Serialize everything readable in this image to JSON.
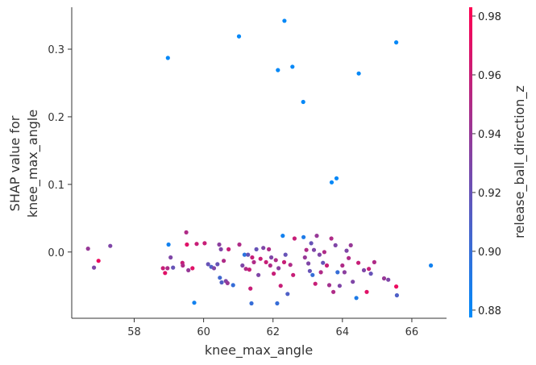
{
  "chart_data": {
    "type": "scatter",
    "xlabel": "knee_max_angle",
    "ylabel_lines": [
      "SHAP value for",
      "knee_max_angle"
    ],
    "colorbar_label": "release_ball_direction_z",
    "xlim": [
      56.2,
      67.0
    ],
    "ylim": [
      -0.098,
      0.362
    ],
    "xticks": [
      58,
      60,
      62,
      64,
      66
    ],
    "yticks": [
      0.0,
      0.1,
      0.2,
      0.3
    ],
    "ytick_labels": [
      "0.0",
      "0.1",
      "0.2",
      "0.3"
    ],
    "clim": [
      0.8775,
      0.983
    ],
    "cticks": [
      0.88,
      0.9,
      0.92,
      0.94,
      0.96,
      0.98
    ],
    "ctick_labels": [
      "0.88",
      "0.90",
      "0.92",
      "0.94",
      "0.96",
      "0.98"
    ],
    "colormap": [
      "#008bfb",
      "#ff0052"
    ],
    "points": [
      {
        "x": 58.97,
        "y": 0.287,
        "c": 0.88
      },
      {
        "x": 61.02,
        "y": 0.319,
        "c": 0.88
      },
      {
        "x": 62.33,
        "y": 0.342,
        "c": 0.88
      },
      {
        "x": 62.56,
        "y": 0.274,
        "c": 0.88
      },
      {
        "x": 62.14,
        "y": 0.269,
        "c": 0.88
      },
      {
        "x": 65.55,
        "y": 0.31,
        "c": 0.88
      },
      {
        "x": 64.47,
        "y": 0.264,
        "c": 0.88
      },
      {
        "x": 62.87,
        "y": 0.222,
        "c": 0.88
      },
      {
        "x": 63.83,
        "y": 0.109,
        "c": 0.88
      },
      {
        "x": 63.69,
        "y": 0.103,
        "c": 0.88
      },
      {
        "x": 56.67,
        "y": 0.005,
        "c": 0.94
      },
      {
        "x": 56.84,
        "y": -0.023,
        "c": 0.93
      },
      {
        "x": 56.97,
        "y": -0.013,
        "c": 0.975
      },
      {
        "x": 57.31,
        "y": 0.009,
        "c": 0.93
      },
      {
        "x": 58.83,
        "y": -0.024,
        "c": 0.96
      },
      {
        "x": 58.89,
        "y": -0.031,
        "c": 0.97
      },
      {
        "x": 58.96,
        "y": -0.024,
        "c": 0.95
      },
      {
        "x": 58.99,
        "y": 0.011,
        "c": 0.885
      },
      {
        "x": 59.05,
        "y": -0.008,
        "c": 0.93
      },
      {
        "x": 59.12,
        "y": -0.023,
        "c": 0.92
      },
      {
        "x": 59.39,
        "y": -0.016,
        "c": 0.96
      },
      {
        "x": 59.4,
        "y": -0.02,
        "c": 0.95
      },
      {
        "x": 59.5,
        "y": 0.029,
        "c": 0.95
      },
      {
        "x": 59.52,
        "y": 0.011,
        "c": 0.97
      },
      {
        "x": 59.56,
        "y": -0.027,
        "c": 0.94
      },
      {
        "x": 59.68,
        "y": -0.024,
        "c": 0.97
      },
      {
        "x": 59.73,
        "y": -0.075,
        "c": 0.885
      },
      {
        "x": 59.8,
        "y": 0.012,
        "c": 0.96
      },
      {
        "x": 60.03,
        "y": 0.013,
        "c": 0.96
      },
      {
        "x": 60.13,
        "y": -0.018,
        "c": 0.92
      },
      {
        "x": 60.22,
        "y": -0.022,
        "c": 0.91
      },
      {
        "x": 60.3,
        "y": -0.024,
        "c": 0.93
      },
      {
        "x": 60.4,
        "y": -0.018,
        "c": 0.92
      },
      {
        "x": 60.45,
        "y": 0.011,
        "c": 0.935
      },
      {
        "x": 60.47,
        "y": -0.038,
        "c": 0.905
      },
      {
        "x": 60.5,
        "y": 0.004,
        "c": 0.93
      },
      {
        "x": 60.52,
        "y": -0.045,
        "c": 0.91
      },
      {
        "x": 60.58,
        "y": -0.013,
        "c": 0.95
      },
      {
        "x": 60.64,
        "y": -0.043,
        "c": 0.93
      },
      {
        "x": 60.69,
        "y": -0.046,
        "c": 0.94
      },
      {
        "x": 60.72,
        "y": 0.004,
        "c": 0.96
      },
      {
        "x": 60.85,
        "y": -0.049,
        "c": 0.9
      },
      {
        "x": 61.03,
        "y": 0.011,
        "c": 0.95
      },
      {
        "x": 61.12,
        "y": -0.02,
        "c": 0.93
      },
      {
        "x": 61.18,
        "y": -0.004,
        "c": 0.895
      },
      {
        "x": 61.22,
        "y": -0.025,
        "c": 0.95
      },
      {
        "x": 61.28,
        "y": -0.004,
        "c": 0.92
      },
      {
        "x": 61.32,
        "y": -0.026,
        "c": 0.96
      },
      {
        "x": 61.35,
        "y": -0.054,
        "c": 0.96
      },
      {
        "x": 61.38,
        "y": -0.076,
        "c": 0.9
      },
      {
        "x": 61.4,
        "y": -0.008,
        "c": 0.96
      },
      {
        "x": 61.45,
        "y": -0.015,
        "c": 0.95
      },
      {
        "x": 61.52,
        "y": 0.004,
        "c": 0.92
      },
      {
        "x": 61.58,
        "y": -0.034,
        "c": 0.93
      },
      {
        "x": 61.64,
        "y": -0.01,
        "c": 0.96
      },
      {
        "x": 61.72,
        "y": 0.006,
        "c": 0.93
      },
      {
        "x": 61.8,
        "y": -0.015,
        "c": 0.96
      },
      {
        "x": 61.88,
        "y": 0.004,
        "c": 0.95
      },
      {
        "x": 61.92,
        "y": -0.02,
        "c": 0.95
      },
      {
        "x": 61.95,
        "y": -0.008,
        "c": 0.93
      },
      {
        "x": 62.02,
        "y": -0.032,
        "c": 0.96
      },
      {
        "x": 62.08,
        "y": -0.012,
        "c": 0.95
      },
      {
        "x": 62.12,
        "y": -0.076,
        "c": 0.9
      },
      {
        "x": 62.16,
        "y": -0.024,
        "c": 0.935
      },
      {
        "x": 62.22,
        "y": -0.05,
        "c": 0.96
      },
      {
        "x": 62.28,
        "y": 0.024,
        "c": 0.885
      },
      {
        "x": 62.32,
        "y": -0.015,
        "c": 0.96
      },
      {
        "x": 62.36,
        "y": -0.004,
        "c": 0.92
      },
      {
        "x": 62.42,
        "y": -0.062,
        "c": 0.91
      },
      {
        "x": 62.5,
        "y": -0.019,
        "c": 0.95
      },
      {
        "x": 62.58,
        "y": -0.034,
        "c": 0.96
      },
      {
        "x": 62.62,
        "y": 0.02,
        "c": 0.96
      },
      {
        "x": 62.88,
        "y": 0.022,
        "c": 0.89
      },
      {
        "x": 62.92,
        "y": -0.008,
        "c": 0.94
      },
      {
        "x": 62.96,
        "y": 0.003,
        "c": 0.95
      },
      {
        "x": 63.02,
        "y": -0.017,
        "c": 0.93
      },
      {
        "x": 63.06,
        "y": -0.028,
        "c": 0.92
      },
      {
        "x": 63.1,
        "y": 0.013,
        "c": 0.92
      },
      {
        "x": 63.14,
        "y": -0.034,
        "c": 0.9
      },
      {
        "x": 63.18,
        "y": 0.003,
        "c": 0.93
      },
      {
        "x": 63.22,
        "y": -0.047,
        "c": 0.96
      },
      {
        "x": 63.26,
        "y": 0.024,
        "c": 0.94
      },
      {
        "x": 63.34,
        "y": -0.004,
        "c": 0.93
      },
      {
        "x": 63.38,
        "y": -0.03,
        "c": 0.95
      },
      {
        "x": 63.44,
        "y": -0.016,
        "c": 0.92
      },
      {
        "x": 63.48,
        "y": 0.0,
        "c": 0.95
      },
      {
        "x": 63.55,
        "y": -0.02,
        "c": 0.96
      },
      {
        "x": 63.62,
        "y": -0.049,
        "c": 0.945
      },
      {
        "x": 63.68,
        "y": 0.02,
        "c": 0.95
      },
      {
        "x": 63.74,
        "y": -0.059,
        "c": 0.95
      },
      {
        "x": 63.8,
        "y": 0.01,
        "c": 0.93
      },
      {
        "x": 63.86,
        "y": -0.03,
        "c": 0.9
      },
      {
        "x": 63.92,
        "y": -0.05,
        "c": 0.93
      },
      {
        "x": 64.0,
        "y": -0.02,
        "c": 0.95
      },
      {
        "x": 64.06,
        "y": -0.03,
        "c": 0.935
      },
      {
        "x": 64.12,
        "y": 0.002,
        "c": 0.93
      },
      {
        "x": 64.18,
        "y": -0.009,
        "c": 0.95
      },
      {
        "x": 64.24,
        "y": 0.01,
        "c": 0.94
      },
      {
        "x": 64.3,
        "y": -0.044,
        "c": 0.93
      },
      {
        "x": 64.4,
        "y": -0.068,
        "c": 0.89
      },
      {
        "x": 64.46,
        "y": -0.016,
        "c": 0.96
      },
      {
        "x": 64.62,
        "y": -0.027,
        "c": 0.93
      },
      {
        "x": 64.7,
        "y": -0.059,
        "c": 0.97
      },
      {
        "x": 64.76,
        "y": -0.025,
        "c": 0.96
      },
      {
        "x": 64.82,
        "y": -0.032,
        "c": 0.92
      },
      {
        "x": 64.92,
        "y": -0.015,
        "c": 0.95
      },
      {
        "x": 65.2,
        "y": -0.039,
        "c": 0.94
      },
      {
        "x": 65.32,
        "y": -0.041,
        "c": 0.93
      },
      {
        "x": 65.55,
        "y": -0.051,
        "c": 0.975
      },
      {
        "x": 65.57,
        "y": -0.064,
        "c": 0.91
      },
      {
        "x": 66.55,
        "y": -0.02,
        "c": 0.885
      }
    ]
  }
}
